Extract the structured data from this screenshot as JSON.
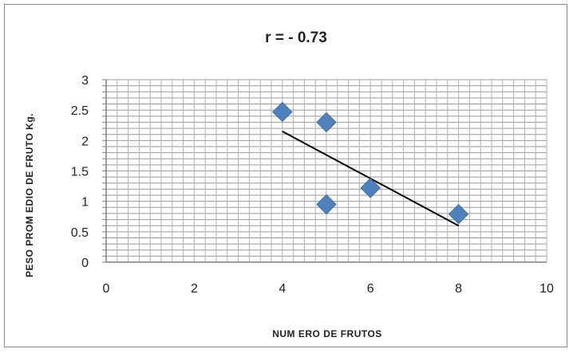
{
  "chart_data": {
    "type": "scatter",
    "title": "r = - 0.73",
    "xlabel": "NUM ERO DE FRUTOS",
    "ylabel": "PESO PROM EDIO DE FRUTO Kg.",
    "xlim": [
      0,
      10
    ],
    "ylim": [
      0,
      3
    ],
    "x_ticks": [
      "0",
      "2",
      "4",
      "6",
      "8",
      "10"
    ],
    "y_ticks": [
      "0",
      "0.5",
      "1",
      "1.5",
      "2",
      "2.5",
      "3"
    ],
    "grid": true,
    "legend": "none",
    "series": [
      {
        "points": [
          {
            "x": 4,
            "y": 2.47
          },
          {
            "x": 5,
            "y": 2.3
          },
          {
            "x": 5,
            "y": 0.95
          },
          {
            "x": 6,
            "y": 1.22
          },
          {
            "x": 8,
            "y": 0.79
          }
        ],
        "marker": "diamond",
        "color": "#4f81bd"
      }
    ],
    "trendline": {
      "x": [
        4,
        8
      ],
      "y": [
        2.15,
        0.6
      ],
      "color": "#000000"
    }
  }
}
